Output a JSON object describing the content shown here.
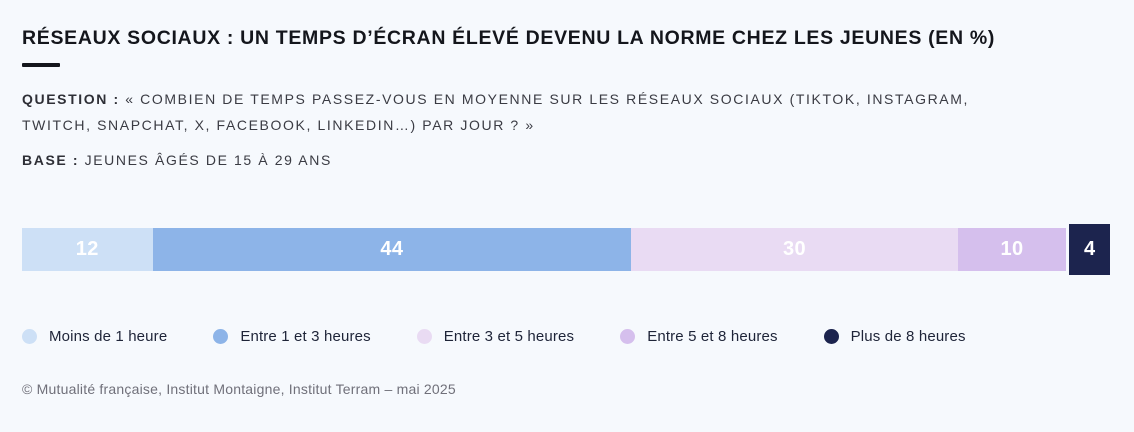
{
  "header": {
    "title": "RÉSEAUX SOCIAUX : UN TEMPS D’ÉCRAN ÉLEVÉ DEVENU LA NORME CHEZ LES JEUNES (EN %)",
    "question_label": "QUESTION :",
    "question_line1": "« COMBIEN DE TEMPS PASSEZ-VOUS EN MOYENNE SUR LES RÉSEAUX SOCIAUX (TIKTOK, INSTAGRAM,",
    "question_line2": "TWITCH, SNAPCHAT, X, FACEBOOK, LINKEDIN…) PAR JOUR ? »",
    "base_label": "BASE :",
    "base_text": "JEUNES ÂGÉS DE 15 À 29 ANS"
  },
  "chart_data": {
    "type": "bar",
    "stacked": true,
    "orientation": "horizontal",
    "unit": "%",
    "title": "RÉSEAUX SOCIAUX : UN TEMPS D’ÉCRAN ÉLEVÉ DEVENU LA NORME CHEZ LES JEUNES (EN %)",
    "categories": [
      "Moins de 1 heure",
      "Entre 1 et 3 heures",
      "Entre 3 et 5 heures",
      "Entre 5 et 8 heures",
      "Plus de 8 heures"
    ],
    "values": [
      12,
      44,
      30,
      10,
      4
    ],
    "colors": [
      "#cde0f6",
      "#8db4e8",
      "#e9dbf3",
      "#d5bfed",
      "#1c244e"
    ],
    "value_label_color": "#ffffff",
    "emphasis": [
      false,
      false,
      false,
      false,
      true
    ],
    "legend_position": "bottom",
    "xlim": [
      0,
      100
    ]
  },
  "footer": {
    "source": "© Mutualité française, Institut Montaigne, Institut Terram – mai 2025"
  },
  "colors": {
    "background": "#f6f9fd",
    "title": "#14161c",
    "body_text": "#3a3b43",
    "legend_text": "#1e2438",
    "footer_text": "#70707a"
  }
}
